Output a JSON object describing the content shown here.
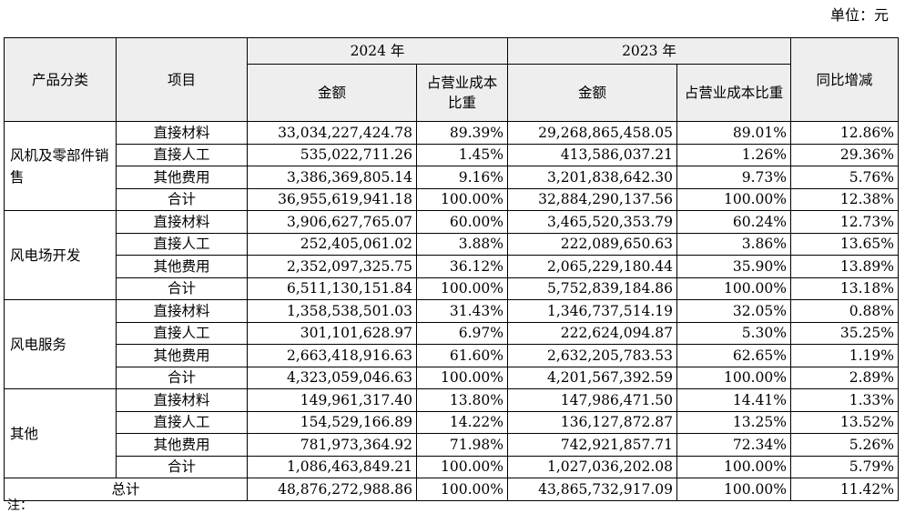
{
  "unit_label": "单位：元",
  "headers": {
    "category": "产品分类",
    "item": "项目",
    "year_2024": "2024 年",
    "year_2023": "2023 年",
    "amount": "金额",
    "share": "占营业成本比重",
    "yoy": "同比增减"
  },
  "groups": [
    {
      "category": "风机及零部件销售",
      "rows": [
        {
          "item": "直接材料",
          "amount_2024": "33,034,227,424.78",
          "share_2024": "89.39%",
          "amount_2023": "29,268,865,458.05",
          "share_2023": "89.01%",
          "yoy": "12.86%"
        },
        {
          "item": "直接人工",
          "amount_2024": "535,022,711.26",
          "share_2024": "1.45%",
          "amount_2023": "413,586,037.21",
          "share_2023": "1.26%",
          "yoy": "29.36%"
        },
        {
          "item": "其他费用",
          "amount_2024": "3,386,369,805.14",
          "share_2024": "9.16%",
          "amount_2023": "3,201,838,642.30",
          "share_2023": "9.73%",
          "yoy": "5.76%"
        },
        {
          "item": "合计",
          "amount_2024": "36,955,619,941.18",
          "share_2024": "100.00%",
          "amount_2023": "32,884,290,137.56",
          "share_2023": "100.00%",
          "yoy": "12.38%"
        }
      ]
    },
    {
      "category": "风电场开发",
      "rows": [
        {
          "item": "直接材料",
          "amount_2024": "3,906,627,765.07",
          "share_2024": "60.00%",
          "amount_2023": "3,465,520,353.79",
          "share_2023": "60.24%",
          "yoy": "12.73%"
        },
        {
          "item": "直接人工",
          "amount_2024": "252,405,061.02",
          "share_2024": "3.88%",
          "amount_2023": "222,089,650.63",
          "share_2023": "3.86%",
          "yoy": "13.65%"
        },
        {
          "item": "其他费用",
          "amount_2024": "2,352,097,325.75",
          "share_2024": "36.12%",
          "amount_2023": "2,065,229,180.44",
          "share_2023": "35.90%",
          "yoy": "13.89%"
        },
        {
          "item": "合计",
          "amount_2024": "6,511,130,151.84",
          "share_2024": "100.00%",
          "amount_2023": "5,752,839,184.86",
          "share_2023": "100.00%",
          "yoy": "13.18%"
        }
      ]
    },
    {
      "category": "风电服务",
      "rows": [
        {
          "item": "直接材料",
          "amount_2024": "1,358,538,501.03",
          "share_2024": "31.43%",
          "amount_2023": "1,346,737,514.19",
          "share_2023": "32.05%",
          "yoy": "0.88%"
        },
        {
          "item": "直接人工",
          "amount_2024": "301,101,628.97",
          "share_2024": "6.97%",
          "amount_2023": "222,624,094.87",
          "share_2023": "5.30%",
          "yoy": "35.25%"
        },
        {
          "item": "其他费用",
          "amount_2024": "2,663,418,916.63",
          "share_2024": "61.60%",
          "amount_2023": "2,632,205,783.53",
          "share_2023": "62.65%",
          "yoy": "1.19%"
        },
        {
          "item": "合计",
          "amount_2024": "4,323,059,046.63",
          "share_2024": "100.00%",
          "amount_2023": "4,201,567,392.59",
          "share_2023": "100.00%",
          "yoy": "2.89%"
        }
      ]
    },
    {
      "category": "其他",
      "rows": [
        {
          "item": "直接材料",
          "amount_2024": "149,961,317.40",
          "share_2024": "13.80%",
          "amount_2023": "147,986,471.50",
          "share_2023": "14.41%",
          "yoy": "1.33%"
        },
        {
          "item": "直接人工",
          "amount_2024": "154,529,166.89",
          "share_2024": "14.22%",
          "amount_2023": "136,127,872.87",
          "share_2023": "13.25%",
          "yoy": "13.52%"
        },
        {
          "item": "其他费用",
          "amount_2024": "781,973,364.92",
          "share_2024": "71.98%",
          "amount_2023": "742,921,857.71",
          "share_2023": "72.34%",
          "yoy": "5.26%"
        },
        {
          "item": "合计",
          "amount_2024": "1,086,463,849.21",
          "share_2024": "100.00%",
          "amount_2023": "1,027,036,202.08",
          "share_2023": "100.00%",
          "yoy": "5.79%"
        }
      ]
    }
  ],
  "grand_total": {
    "label": "总计",
    "amount_2024": "48,876,272,988.86",
    "share_2024": "100.00%",
    "amount_2023": "43,865,732,917.09",
    "share_2023": "100.00%",
    "yoy": "11.42%"
  },
  "note_label": "注："
}
